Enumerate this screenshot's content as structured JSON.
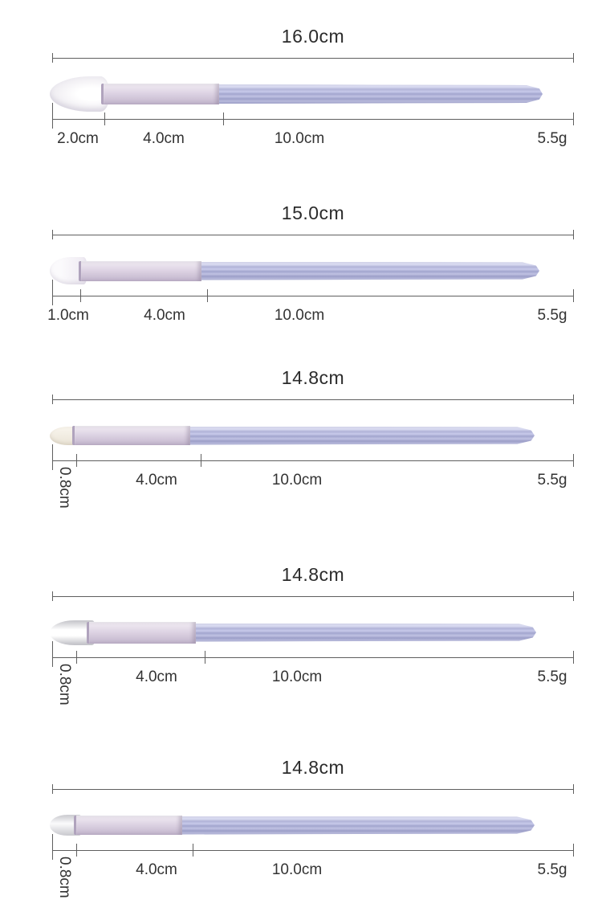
{
  "diagram": {
    "unit_note": "brush size specification diagram",
    "colors": {
      "handle": "#b4b7dc",
      "ferrule": "#d6cbde",
      "bristle_white": "#f8f7f5",
      "bristle_ivory": "#f1ecdf",
      "dimension_line": "#5f5f5f",
      "text": "#323232"
    }
  },
  "brushes": [
    {
      "shape": "fluffy-tapered-powder-brush",
      "total_length": "16.0cm",
      "bristle_length": "2.0cm",
      "ferrule_length": "4.0cm",
      "handle_length": "10.0cm",
      "weight": "5.5g"
    },
    {
      "shape": "dome-blending-brush",
      "total_length": "15.0cm",
      "bristle_length": "1.0cm",
      "ferrule_length": "4.0cm",
      "handle_length": "10.0cm",
      "weight": "5.5g"
    },
    {
      "shape": "round-pencil-brush",
      "total_length": "14.8cm",
      "bristle_length": "0.8cm",
      "ferrule_length": "4.0cm",
      "handle_length": "10.0cm",
      "weight": "5.5g"
    },
    {
      "shape": "flat-shader-brush",
      "total_length": "14.8cm",
      "bristle_length": "0.8cm",
      "ferrule_length": "4.0cm",
      "handle_length": "10.0cm",
      "weight": "5.5g"
    },
    {
      "shape": "small-flat-brush",
      "total_length": "14.8cm",
      "bristle_length": "0.8cm",
      "ferrule_length": "4.0cm",
      "handle_length": "10.0cm",
      "weight": "5.5g"
    }
  ]
}
